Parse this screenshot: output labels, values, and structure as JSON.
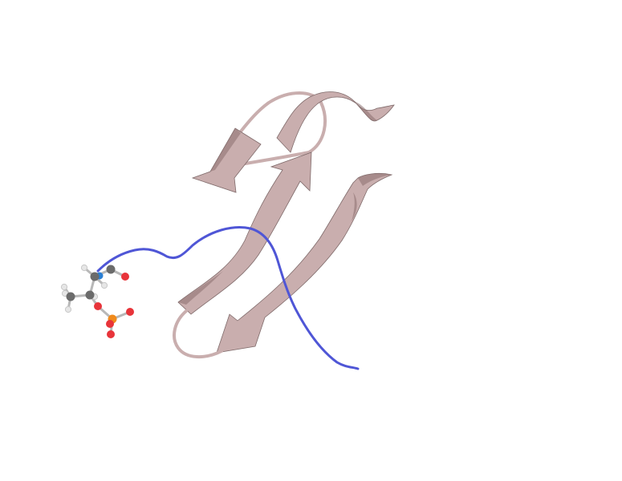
{
  "scene": {
    "kind": "protein-cartoon",
    "colors": {
      "background": "#ffffff",
      "strand_fill": "#c9aeae",
      "strand_shade": "#8a7070",
      "strand_edge": "#7f6a6a",
      "peptide": "#4f56d6",
      "carbon": "#6b6b6b",
      "hydrogen": "#e6e6e6",
      "nitrogen": "#2a7fd4",
      "oxygen": "#e8343a",
      "phosphorus": "#f08a1c",
      "bond": "#b8b8b8"
    },
    "elements": [
      "protein-chain",
      "peptide-chain",
      "ligand"
    ]
  }
}
